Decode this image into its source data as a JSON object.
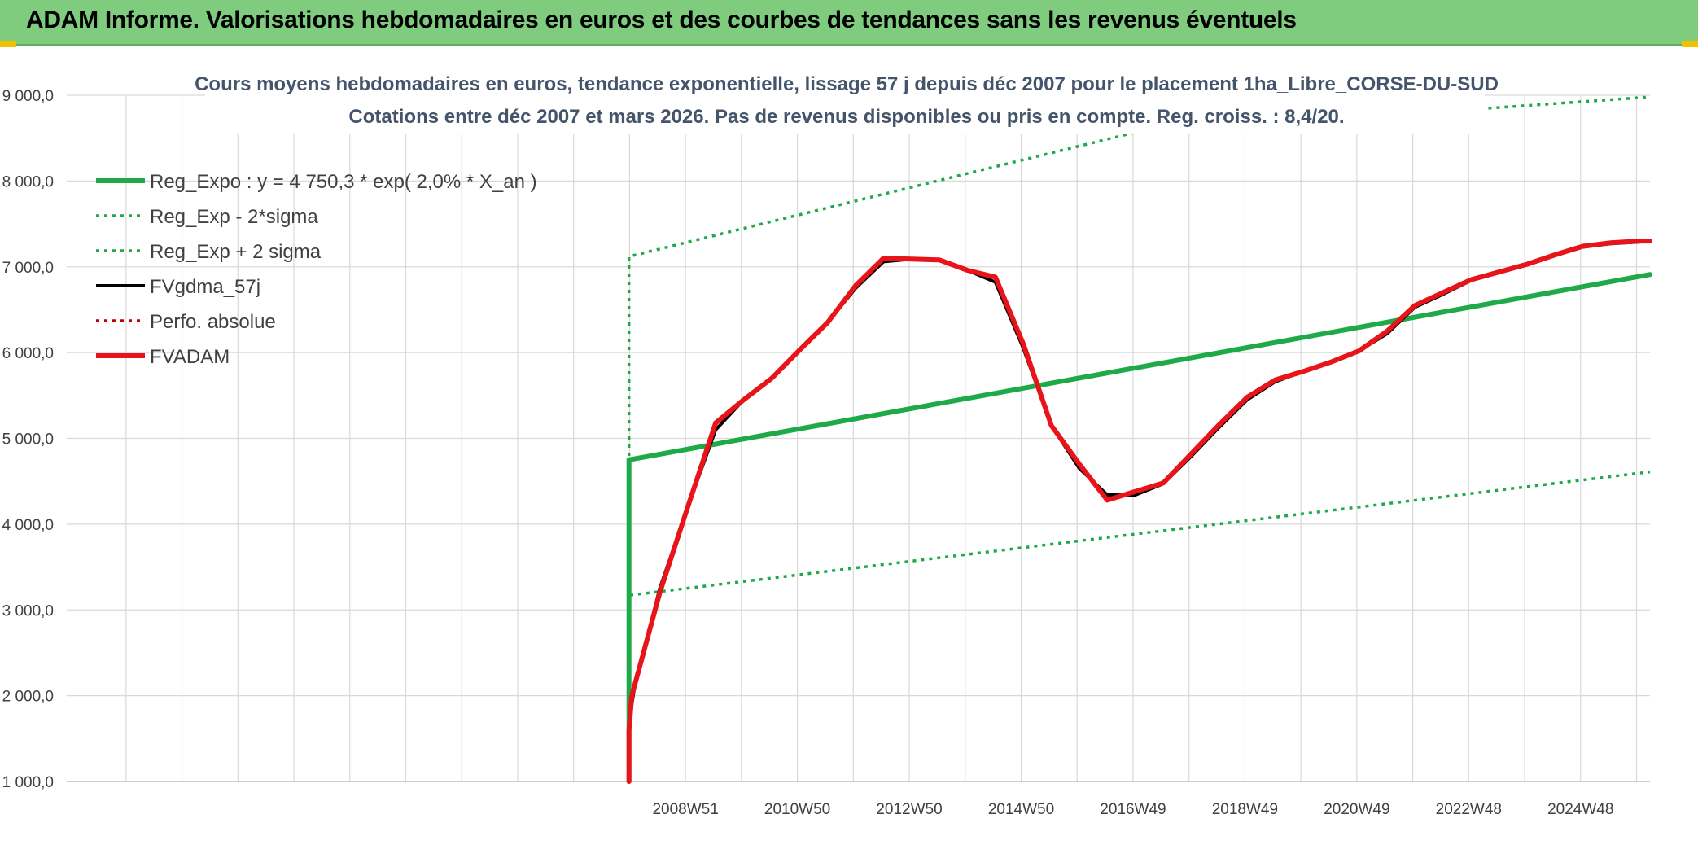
{
  "banner": {
    "title": "ADAM Informe. Valorisations hebdomadaires en euros et des courbes de tendances sans les revenus éventuels"
  },
  "colors": {
    "banner_bg": "#7fcc7f",
    "regression": "#1faa4a",
    "fvgdma": "#000000",
    "fvadam": "#e8141a",
    "perfo": "#c00000",
    "grid": "#d9d9d9"
  },
  "chart_data": {
    "type": "line",
    "title": "Cours moyens hebdomadaires en euros, tendance exponentielle, lissage 57 j depuis déc 2007 pour le placement 1ha_Libre_CORSE-DU-SUD",
    "subtitle": "Cotations entre déc 2007 et mars 2026. Pas de revenus disponibles ou pris en compte. Reg. croiss. : 8,4/20.",
    "xlabel": "",
    "ylabel": "",
    "ylim": [
      1000,
      9000
    ],
    "yticks": [
      1000,
      2000,
      3000,
      4000,
      5000,
      6000,
      7000,
      8000,
      9000
    ],
    "ytick_labels": [
      "1 000,0",
      "2 000,0",
      "3 000,0",
      "4 000,0",
      "5 000,0",
      "6 000,0",
      "7 000,0",
      "8 000,0",
      "9 000,0"
    ],
    "xlim": [
      1997.9,
      2026.2
    ],
    "xtick_positions": [
      2008.96,
      2010.96,
      2012.96,
      2014.96,
      2016.96,
      2018.96,
      2020.96,
      2022.96,
      2024.96
    ],
    "xtick_labels": [
      "2008W51",
      "2010W50",
      "2012W50",
      "2014W50",
      "2016W49",
      "2018W49",
      "2020W49",
      "2022W48",
      "2024W48"
    ],
    "legend_position": "top-left",
    "grid": true,
    "series": [
      {
        "name": "Reg_Expo : y = 4 750,3 * exp( 2,0% *  X_an )",
        "style": "solid-thick",
        "color": "#1faa4a",
        "x": [
          2007.95,
          2007.95,
          2026.2
        ],
        "y": [
          1000,
          4750,
          6910
        ]
      },
      {
        "name": "Reg_Exp - 2*sigma",
        "style": "dotted",
        "color": "#1faa4a",
        "x": [
          2007.95,
          2007.95,
          2026.2
        ],
        "y": [
          1000,
          3170,
          4610
        ]
      },
      {
        "name": "Reg_Exp + 2 sigma",
        "style": "dotted",
        "color": "#1faa4a",
        "x": [
          2007.95,
          2007.95,
          2016.95,
          2026.2
        ],
        "y": [
          1000,
          7120,
          8560,
          8980
        ]
      },
      {
        "name": "FVgdma_57j",
        "style": "solid",
        "color": "#000000",
        "x": [
          2007.95,
          2008.05,
          2008.5,
          2009.0,
          2009.5,
          2010.0,
          2010.5,
          2011.0,
          2011.5,
          2012.0,
          2012.5,
          2013.0,
          2013.5,
          2014.0,
          2014.5,
          2015.0,
          2015.5,
          2016.0,
          2016.5,
          2017.0,
          2017.5,
          2018.0,
          2018.5,
          2019.0,
          2019.5,
          2020.0,
          2020.5,
          2021.0,
          2021.5,
          2022.0,
          2022.5,
          2023.0,
          2023.5,
          2024.0,
          2024.5,
          2025.0,
          2025.5,
          2026.0,
          2026.2
        ],
        "y": [
          1700,
          2100,
          3250,
          4200,
          5100,
          5450,
          5700,
          6030,
          6350,
          6750,
          7060,
          7090,
          7080,
          6960,
          6820,
          6050,
          5150,
          4650,
          4340,
          4340,
          4470,
          4790,
          5130,
          5450,
          5660,
          5780,
          5890,
          6020,
          6220,
          6530,
          6680,
          6840,
          6930,
          7020,
          7130,
          7230,
          7270,
          7290,
          7300
        ]
      },
      {
        "name": "Perfo. absolue",
        "style": "dotted",
        "color": "#c00000",
        "x": [],
        "y": []
      },
      {
        "name": "FVADAM",
        "style": "solid-thick",
        "color": "#e8141a",
        "x": [
          2007.95,
          2007.95,
          2008.0,
          2008.5,
          2009.0,
          2009.5,
          2010.0,
          2010.5,
          2011.0,
          2011.5,
          2012.0,
          2012.5,
          2013.0,
          2013.5,
          2014.0,
          2014.5,
          2015.0,
          2015.5,
          2016.0,
          2016.5,
          2017.0,
          2017.5,
          2018.0,
          2018.5,
          2019.0,
          2019.5,
          2020.0,
          2020.5,
          2021.0,
          2021.5,
          2022.0,
          2022.5,
          2023.0,
          2023.5,
          2024.0,
          2024.5,
          2025.0,
          2025.5,
          2026.0,
          2026.2
        ],
        "y": [
          1000,
          1600,
          2000,
          3200,
          4200,
          5180,
          5450,
          5700,
          6030,
          6350,
          6780,
          7100,
          7090,
          7080,
          6960,
          6880,
          6100,
          5150,
          4700,
          4280,
          4380,
          4480,
          4820,
          5160,
          5480,
          5680,
          5780,
          5890,
          6020,
          6250,
          6550,
          6700,
          6850,
          6940,
          7030,
          7140,
          7240,
          7280,
          7300,
          7300
        ]
      }
    ]
  }
}
